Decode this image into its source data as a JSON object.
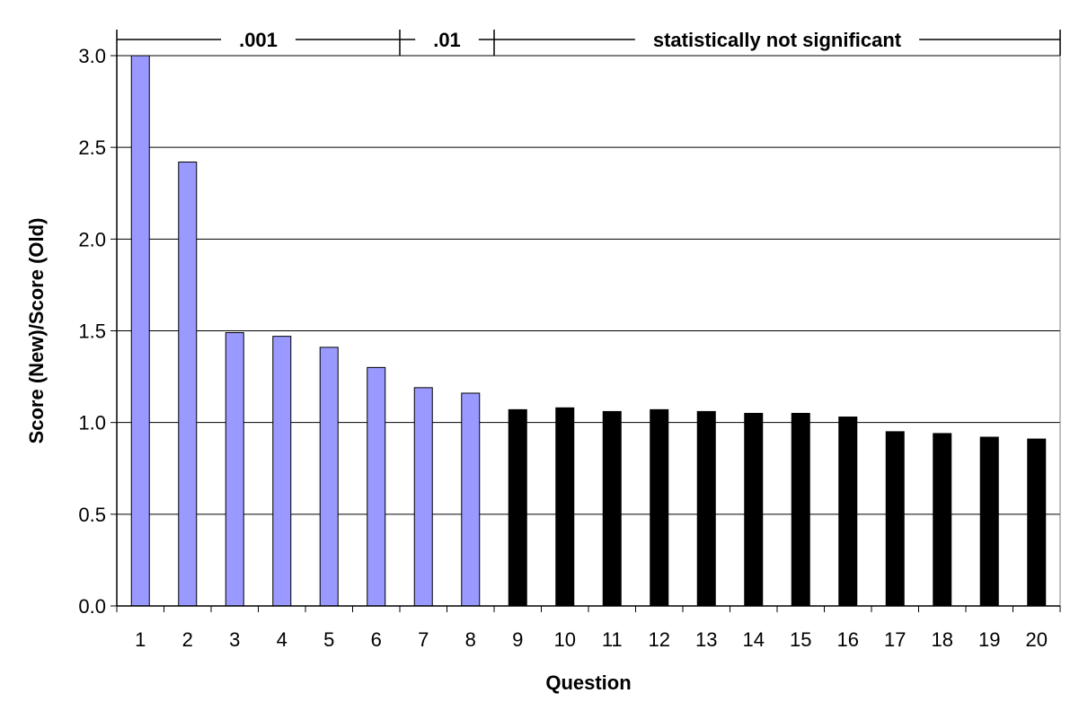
{
  "chart_data": {
    "type": "bar",
    "xlabel": "Question",
    "ylabel": "Score (New)/Score (Old)",
    "ylim": [
      0,
      3.0
    ],
    "yticks": [
      "0.0",
      "0.5",
      "1.0",
      "1.5",
      "2.0",
      "2.5",
      "3.0"
    ],
    "grid": true,
    "categories": [
      "1",
      "2",
      "3",
      "4",
      "5",
      "6",
      "7",
      "8",
      "9",
      "10",
      "11",
      "12",
      "13",
      "14",
      "15",
      "16",
      "17",
      "18",
      "19",
      "20"
    ],
    "values": [
      3.0,
      2.42,
      1.49,
      1.47,
      1.41,
      1.3,
      1.19,
      1.16,
      1.07,
      1.08,
      1.06,
      1.07,
      1.06,
      1.05,
      1.05,
      1.03,
      0.95,
      0.94,
      0.92,
      0.91
    ],
    "bar_colors": {
      "significant": "#9999ff",
      "not_significant": "#000000"
    },
    "significance_groups": [
      {
        "label": ".001",
        "from_category": "1",
        "to_category": "6"
      },
      {
        "label": ".01",
        "from_category": "7",
        "to_category": "8"
      },
      {
        "label": "statistically not significant",
        "from_category": "9",
        "to_category": "20"
      }
    ]
  }
}
